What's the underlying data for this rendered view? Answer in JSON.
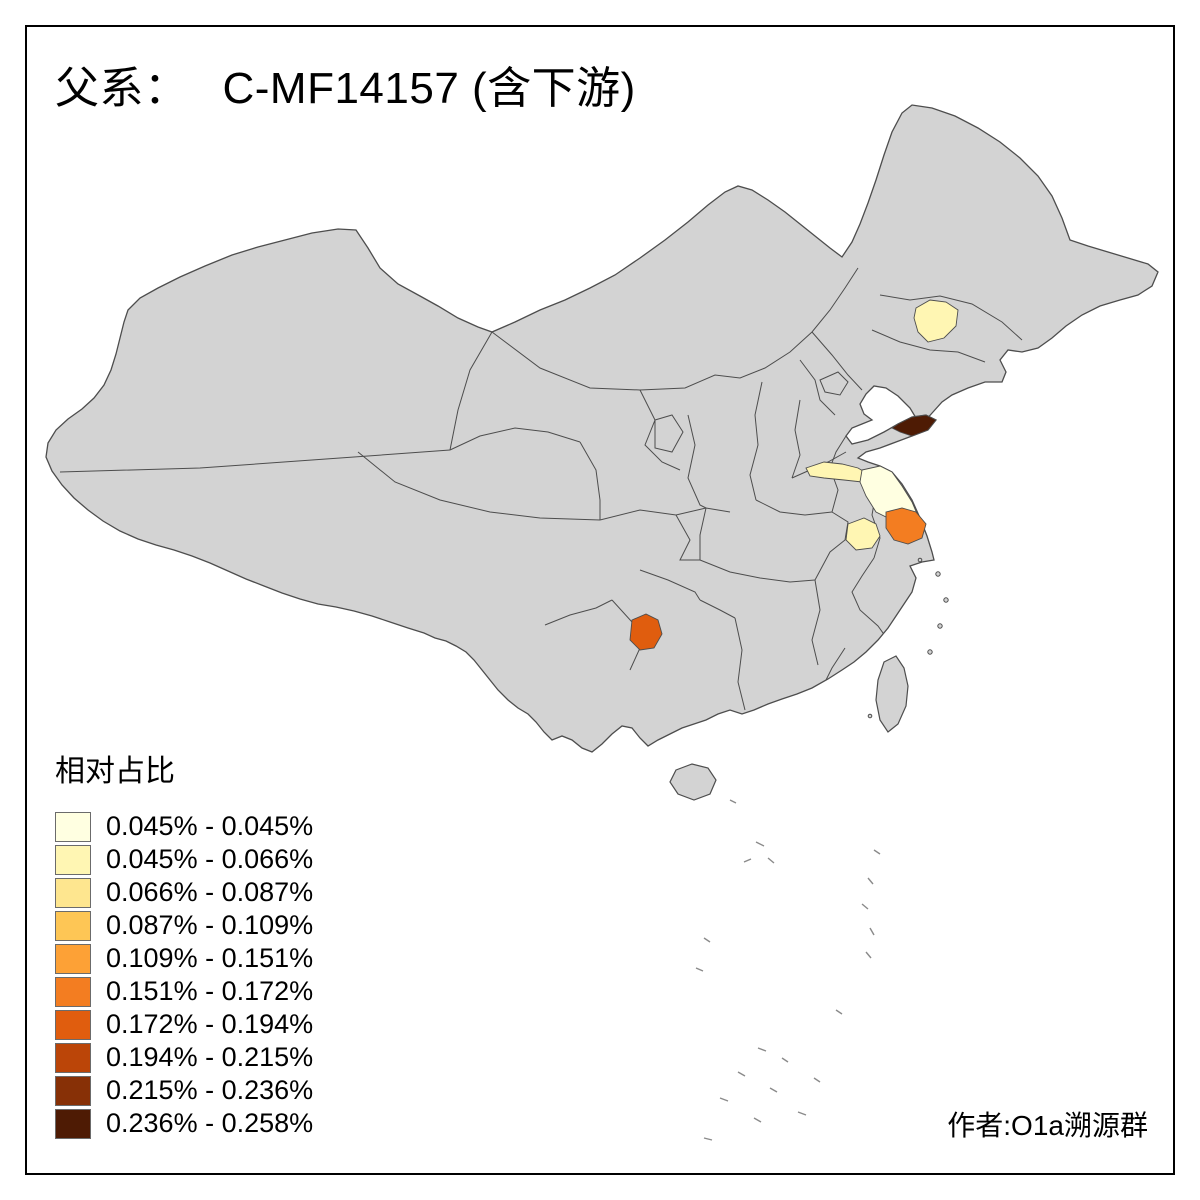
{
  "title": {
    "prefix": "父系：",
    "main": "C-MF14157 (含下游)"
  },
  "legend": {
    "title": "相对占比",
    "classes": [
      {
        "label": "0.045% - 0.045%",
        "color": "#FFFFE1"
      },
      {
        "label": "0.045% - 0.066%",
        "color": "#FFF6B3"
      },
      {
        "label": "0.066% - 0.087%",
        "color": "#FEE68F"
      },
      {
        "label": "0.087% - 0.109%",
        "color": "#FEC655"
      },
      {
        "label": "0.109% - 0.151%",
        "color": "#FDA136"
      },
      {
        "label": "0.151% - 0.172%",
        "color": "#F37D21"
      },
      {
        "label": "0.172% - 0.194%",
        "color": "#E05D0E"
      },
      {
        "label": "0.194% - 0.215%",
        "color": "#BB4508"
      },
      {
        "label": "0.215% - 0.236%",
        "color": "#873006"
      },
      {
        "label": "0.236% - 0.258%",
        "color": "#4E1B04"
      }
    ]
  },
  "credit": "作者:O1a溯源群",
  "map": {
    "base_fill": "#D3D3D3",
    "border_color": "#4D4D4D",
    "background": "#FFFFFF",
    "regions": [
      {
        "name": "northeast-jilin",
        "class_index": 1
      },
      {
        "name": "shandong-peninsula-tip",
        "class_index": 9
      },
      {
        "name": "huaibei-strip",
        "class_index": 1
      },
      {
        "name": "jiangsu-coastal-north",
        "class_index": 0
      },
      {
        "name": "jiangsu-central",
        "class_index": 5
      },
      {
        "name": "nanjing-area",
        "class_index": 1
      },
      {
        "name": "guizhou-north",
        "class_index": 6
      }
    ]
  }
}
